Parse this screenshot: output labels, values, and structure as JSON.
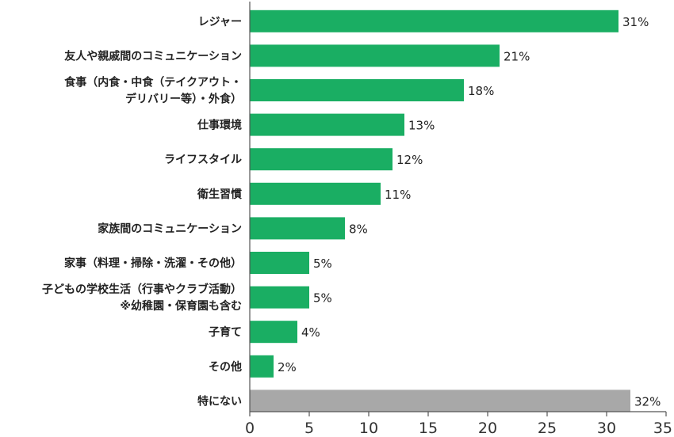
{
  "chart_data": {
    "type": "bar",
    "orientation": "horizontal",
    "categories": [
      [
        "レジャー"
      ],
      [
        "友人や親戚間のコミュニケーション"
      ],
      [
        "食事（内食・中食（テイクアウト・",
        "デリバリー等）・外食）"
      ],
      [
        "仕事環境"
      ],
      [
        "ライフスタイル"
      ],
      [
        "衛生習慣"
      ],
      [
        "家族間のコミュニケーション"
      ],
      [
        "家事（料理・掃除・洗濯・その他）"
      ],
      [
        "子どもの学校生活（行事やクラブ活動）",
        "※幼稚園・保育園も含む"
      ],
      [
        "子育て"
      ],
      [
        "その他"
      ],
      [
        "特にない"
      ]
    ],
    "values": [
      31,
      21,
      18,
      13,
      12,
      11,
      8,
      5,
      5,
      4,
      2,
      32
    ],
    "value_labels": [
      "31%",
      "21%",
      "18%",
      "13%",
      "12%",
      "11%",
      "8%",
      "5%",
      "5%",
      "4%",
      "2%",
      "32%"
    ],
    "bar_colors": [
      "#1aae63",
      "#1aae63",
      "#1aae63",
      "#1aae63",
      "#1aae63",
      "#1aae63",
      "#1aae63",
      "#1aae63",
      "#1aae63",
      "#1aae63",
      "#1aae63",
      "#a8a8a8"
    ],
    "xlim": [
      0,
      35
    ],
    "xticks": [
      0,
      5,
      10,
      15,
      20,
      25,
      30,
      35
    ],
    "grid": false,
    "legend": "none",
    "colors": {
      "primary": "#1aae63",
      "neutral": "#a8a8a8",
      "axis": "#555555"
    }
  }
}
